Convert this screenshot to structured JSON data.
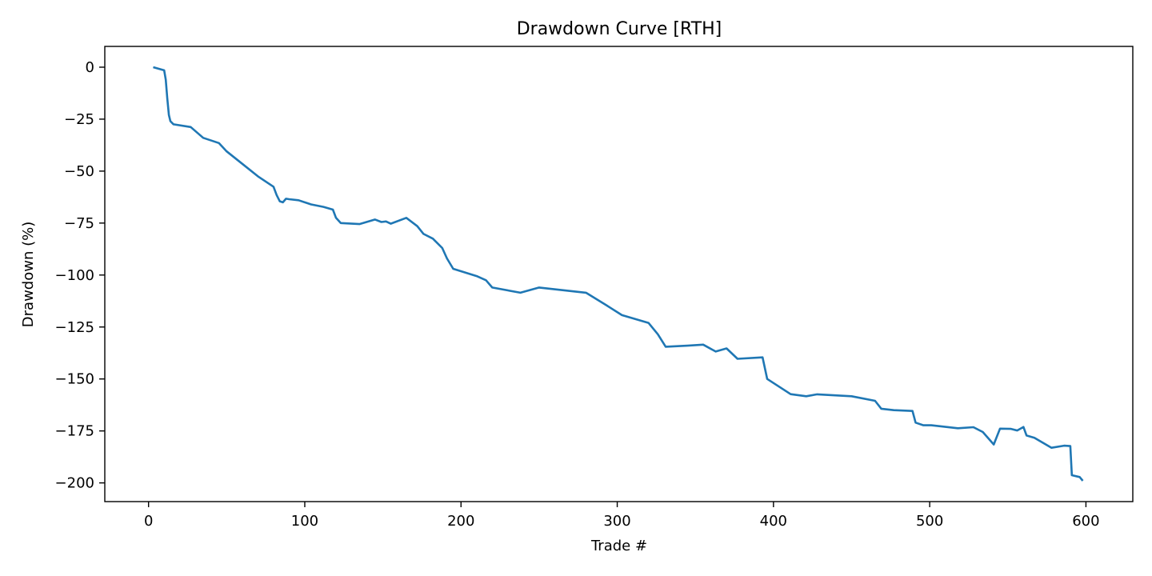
{
  "chart_data": {
    "type": "line",
    "title": "Drawdown Curve [RTH]",
    "xlabel": "Trade #",
    "ylabel": "Drawdown (%)",
    "xlim": [
      -28,
      630
    ],
    "ylim": [
      -209,
      10
    ],
    "xticks": [
      0,
      100,
      200,
      300,
      400,
      500,
      600
    ],
    "yticks": [
      0,
      -25,
      -50,
      -75,
      -100,
      -125,
      -150,
      -175,
      -200
    ],
    "ytick_labels": [
      "0",
      "−25",
      "−50",
      "−75",
      "−100",
      "−125",
      "−150",
      "−175",
      "−200"
    ],
    "grid": false,
    "line_color": "#1f77b4",
    "series": [
      {
        "x": [
          3,
          10,
          11,
          12,
          13,
          14,
          16,
          27,
          35,
          45,
          50,
          60,
          70,
          80,
          82,
          84,
          86,
          88,
          90,
          96,
          104,
          112,
          118,
          120,
          123,
          135,
          145,
          149,
          152,
          155,
          165,
          172,
          176,
          182,
          188,
          191,
          195,
          210,
          216,
          220,
          238,
          250,
          280,
          293,
          303,
          320,
          326,
          331,
          345,
          355,
          363,
          370,
          377,
          393,
          396,
          411,
          421,
          428,
          450,
          465,
          469,
          477,
          489,
          491,
          496,
          501,
          518,
          528,
          534,
          541,
          545,
          552,
          556,
          560,
          562,
          567,
          578,
          586,
          590,
          591,
          596,
          598
        ],
        "y": [
          0,
          -1.5,
          -6,
          -15,
          -23,
          -26,
          -27.5,
          -28.8,
          -34,
          -36.5,
          -40.5,
          -46.5,
          -52.5,
          -57.5,
          -61.5,
          -64.5,
          -65,
          -63.3,
          -63.5,
          -64,
          -66,
          -67.2,
          -68.5,
          -72.5,
          -75,
          -75.5,
          -73.3,
          -74.5,
          -74.2,
          -75.3,
          -72.5,
          -76.5,
          -80.2,
          -82.5,
          -87,
          -92,
          -97,
          -100.5,
          -102.5,
          -106,
          -108.5,
          -106,
          -108.5,
          -114.5,
          -119.3,
          -123,
          -128.5,
          -134.5,
          -134,
          -133.5,
          -136.8,
          -135.3,
          -140.3,
          -139.6,
          -150,
          -157.3,
          -158.3,
          -157.4,
          -158.3,
          -160.5,
          -164.3,
          -165,
          -165.4,
          -171,
          -172.3,
          -172.3,
          -173.7,
          -173.2,
          -175.5,
          -181.5,
          -173.9,
          -174,
          -174.8,
          -173.1,
          -177.2,
          -178.3,
          -183.1,
          -182.1,
          -182.3,
          -196.3,
          -197.2,
          -199
        ]
      }
    ]
  }
}
